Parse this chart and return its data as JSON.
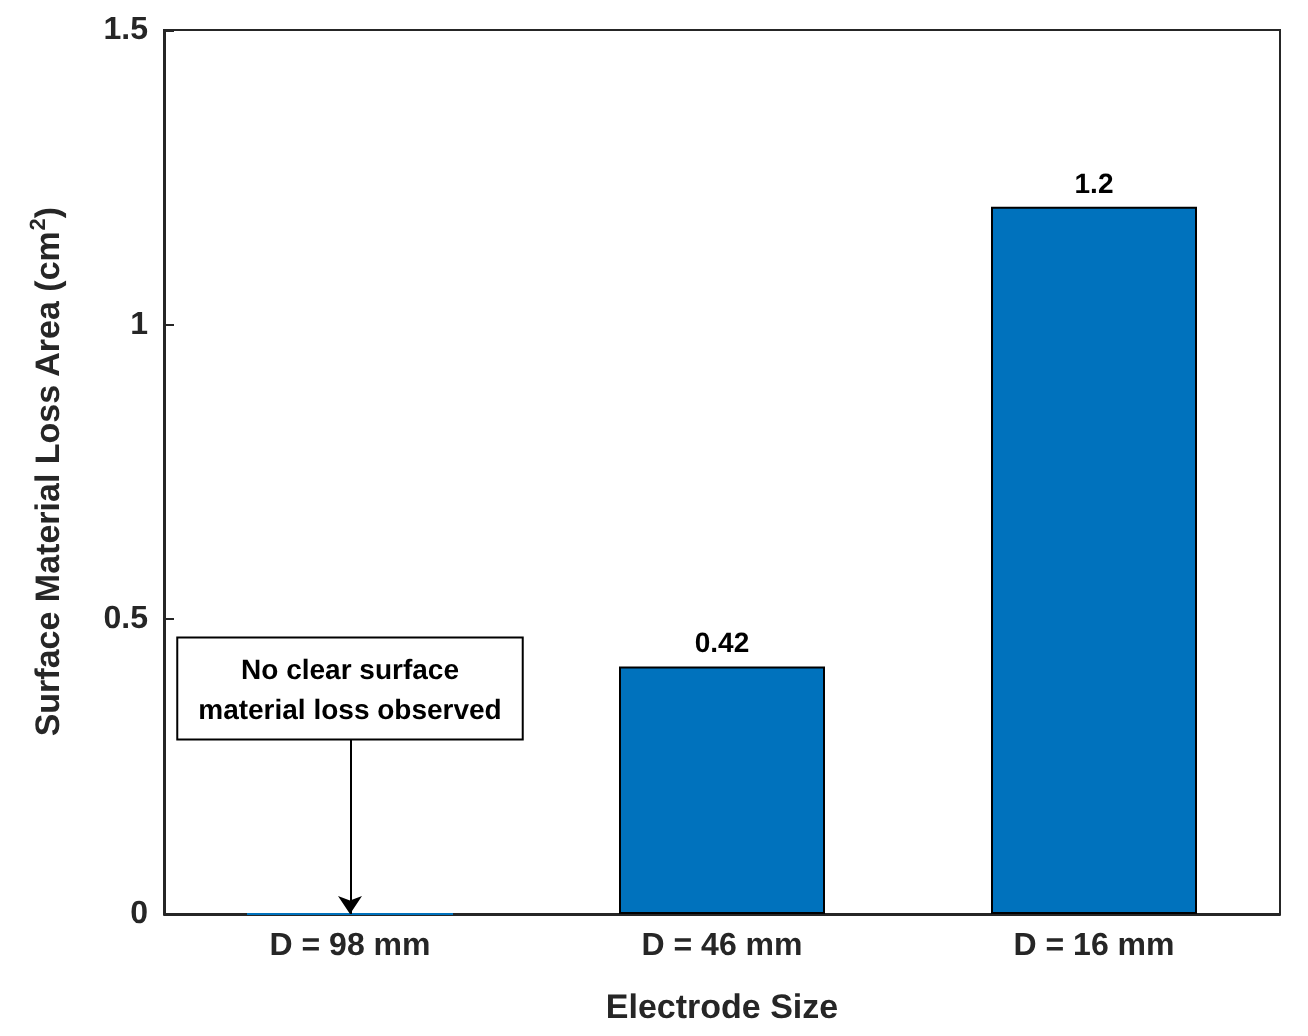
{
  "chart_data": {
    "type": "bar",
    "categories": [
      "D = 98 mm",
      "D = 46 mm",
      "D = 16 mm"
    ],
    "values": [
      0,
      0.42,
      1.2
    ],
    "value_labels": [
      null,
      "0.42",
      "1.2"
    ],
    "color": "#0072bd",
    "xlabel": "Electrode Size",
    "ylabel": "Surface Material Loss Area (cm$^{2}$)",
    "ylim": [
      0,
      1.5
    ],
    "yticks": [
      0,
      0.5,
      1,
      1.5
    ],
    "grid": false,
    "annotations": [
      {
        "text": "No clear surface\nmaterial loss observed",
        "x": "D = 98 mm",
        "y": 0
      }
    ]
  }
}
